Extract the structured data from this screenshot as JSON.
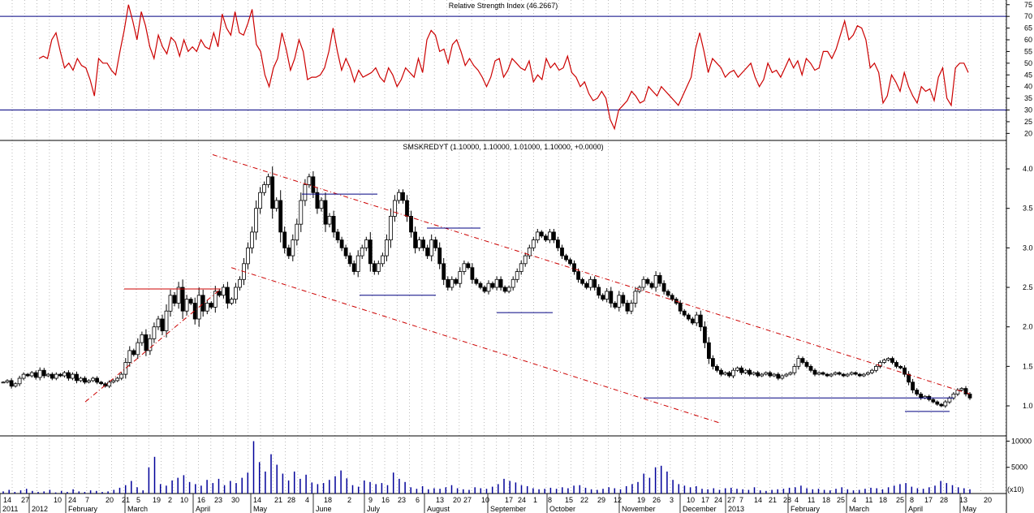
{
  "rsi": {
    "title": "Relative Strength Index (46.2667)",
    "y_ticks": [
      75,
      70,
      65,
      60,
      55,
      50,
      45,
      40,
      35,
      30,
      25,
      20
    ],
    "ylim": [
      17,
      77
    ],
    "levels": [
      70,
      30
    ],
    "color": "#cc0000",
    "level_color": "#000080"
  },
  "price": {
    "title": "SMSKREDYT (1.10000, 1.10000, 1.01000, 1.10000, +0.0000)",
    "y_ticks": [
      "4.0",
      "3.5",
      "3.0",
      "2.5",
      "2.0",
      "1.5",
      "1.0"
    ],
    "ylim": [
      0.62,
      4.36
    ],
    "bar_color": "#000000",
    "trend_color": "#cc0000",
    "support_color": "#000080"
  },
  "volume": {
    "y_ticks": [
      "10000",
      "5000"
    ],
    "ylim": [
      0,
      11000
    ],
    "color": "#000099",
    "unit_label": "(x10)"
  },
  "x_axis": {
    "day_labels": [
      "14",
      "27",
      "10",
      "24",
      "7",
      "20",
      "21",
      "5",
      "19",
      "2",
      "10",
      "16",
      "23",
      "30",
      "14",
      "21",
      "28",
      "4",
      "18",
      "2",
      "9",
      "16",
      "23",
      "6",
      "13",
      "20",
      "27",
      "10",
      "17",
      "24",
      "1",
      "8",
      "15",
      "22",
      "29",
      "12",
      "19",
      "26",
      "3",
      "10",
      "17",
      "24",
      "27",
      "7",
      "14",
      "21",
      "28",
      "4",
      "11",
      "18",
      "25",
      "4",
      "11",
      "18",
      "25",
      "8",
      "17",
      "28",
      "13",
      "20"
    ],
    "month_labels": [
      "2011",
      "2012",
      "February",
      "March",
      "April",
      "May",
      "June",
      "July",
      "August",
      "September",
      "October",
      "November",
      "December",
      "2013",
      "February",
      "March",
      "April",
      "May"
    ]
  },
  "chart_data": [
    {
      "type": "line",
      "title": "Relative Strength Index (46.2667)",
      "ylim": [
        17,
        77
      ],
      "reference_lines": [
        70,
        30
      ],
      "series": [
        {
          "values": [
            52,
            53,
            52,
            60,
            63,
            55,
            48,
            50,
            47,
            52,
            49,
            48,
            43,
            36,
            52,
            50,
            50,
            47,
            45,
            55,
            64,
            75,
            68,
            60,
            72,
            66,
            57,
            52,
            62,
            57,
            54,
            61,
            59,
            53,
            60,
            55,
            57,
            55,
            60,
            57,
            56,
            63,
            57,
            71,
            65,
            62,
            72,
            63,
            62,
            67,
            73,
            58,
            55,
            45,
            40,
            48,
            52,
            63,
            56,
            47,
            52,
            60,
            55,
            43,
            44,
            44,
            45,
            48,
            55,
            65,
            55,
            47,
            52,
            48,
            42,
            47,
            44,
            45,
            46,
            48,
            44,
            42,
            48,
            45,
            40,
            43,
            48,
            46,
            44,
            52,
            46,
            60,
            64,
            62,
            55,
            56,
            50,
            58,
            60,
            55,
            49,
            52,
            49,
            47,
            44,
            40,
            44,
            51,
            52,
            44,
            47,
            52,
            50,
            48,
            47,
            51,
            42,
            45,
            43,
            52,
            48,
            50,
            47,
            48,
            53,
            46,
            44,
            40,
            42,
            37,
            34,
            35,
            38,
            35,
            26,
            22,
            30,
            32,
            34,
            38,
            36,
            33,
            34,
            40,
            38,
            36,
            40,
            38,
            36,
            34,
            32,
            36,
            40,
            44,
            56,
            63,
            55,
            46,
            52,
            50,
            48,
            44,
            46,
            47,
            44,
            46,
            48,
            50,
            44,
            40,
            43,
            50,
            46,
            47,
            44,
            48,
            52,
            48,
            51,
            45,
            52,
            50,
            47,
            48,
            55,
            55,
            52,
            56,
            62,
            68,
            60,
            62,
            66,
            65,
            60,
            48,
            50,
            46,
            33,
            36,
            45,
            42,
            38,
            46,
            40,
            36,
            33,
            40,
            38,
            39,
            34,
            44,
            48,
            35,
            32,
            48,
            50,
            50,
            46
          ],
          "color": "#cc0000"
        }
      ]
    },
    {
      "type": "bar",
      "title": "SMSKREDYT (1.10000, 1.10000, 1.01000, 1.10000, +0.0000)",
      "ylim": [
        0.62,
        4.36
      ],
      "series": [
        {
          "name": "SMSKREDYT",
          "values": [
            1.3,
            1.32,
            1.25,
            1.28,
            1.35,
            1.4,
            1.38,
            1.42,
            1.36,
            1.45,
            1.38,
            1.4,
            1.35,
            1.4,
            1.38,
            1.42,
            1.35,
            1.4,
            1.32,
            1.35,
            1.3,
            1.32,
            1.35,
            1.3,
            1.28,
            1.25,
            1.3,
            1.32,
            1.35,
            1.4,
            1.55,
            1.7,
            1.65,
            1.8,
            1.9,
            1.7,
            1.85,
            2.0,
            2.1,
            1.95,
            2.2,
            2.4,
            2.3,
            2.5,
            2.2,
            2.35,
            2.3,
            2.1,
            2.4,
            2.2,
            2.3,
            2.25,
            2.45,
            2.4,
            2.5,
            2.3,
            2.35,
            2.5,
            2.6,
            2.8,
            3.0,
            3.2,
            3.5,
            3.7,
            3.8,
            3.9,
            3.5,
            3.6,
            3.2,
            3.0,
            2.9,
            3.1,
            3.3,
            3.6,
            3.8,
            3.9,
            3.7,
            3.5,
            3.6,
            3.3,
            3.4,
            3.2,
            3.1,
            3.0,
            2.9,
            2.8,
            2.7,
            2.9,
            3.0,
            3.1,
            2.8,
            2.7,
            2.8,
            2.9,
            3.1,
            3.4,
            3.6,
            3.7,
            3.6,
            3.4,
            3.2,
            3.0,
            3.1,
            3.0,
            2.9,
            3.1,
            3.0,
            2.8,
            2.6,
            2.5,
            2.6,
            2.55,
            2.7,
            2.8,
            2.75,
            2.6,
            2.55,
            2.5,
            2.45,
            2.55,
            2.5,
            2.6,
            2.5,
            2.45,
            2.5,
            2.6,
            2.7,
            2.8,
            2.9,
            3.0,
            3.1,
            3.2,
            3.15,
            3.1,
            3.2,
            3.1,
            3.0,
            2.9,
            2.85,
            2.8,
            2.7,
            2.6,
            2.55,
            2.5,
            2.6,
            2.5,
            2.4,
            2.35,
            2.45,
            2.3,
            2.25,
            2.4,
            2.3,
            2.2,
            2.3,
            2.45,
            2.5,
            2.6,
            2.55,
            2.5,
            2.65,
            2.55,
            2.45,
            2.4,
            2.35,
            2.3,
            2.2,
            2.15,
            2.1,
            2.05,
            2.15,
            2.0,
            1.8,
            1.6,
            1.5,
            1.45,
            1.4,
            1.42,
            1.38,
            1.45,
            1.48,
            1.42,
            1.45,
            1.4,
            1.42,
            1.38,
            1.4,
            1.42,
            1.38,
            1.4,
            1.35,
            1.38,
            1.4,
            1.42,
            1.5,
            1.6,
            1.55,
            1.5,
            1.45,
            1.4,
            1.42,
            1.4,
            1.38,
            1.4,
            1.42,
            1.4,
            1.38,
            1.4,
            1.42,
            1.4,
            1.38,
            1.4,
            1.42,
            1.45,
            1.5,
            1.55,
            1.58,
            1.6,
            1.55,
            1.5,
            1.48,
            1.4,
            1.3,
            1.2,
            1.15,
            1.1,
            1.12,
            1.08,
            1.05,
            1.02,
            1.0,
            1.05,
            1.1,
            1.15,
            1.2,
            1.22,
            1.15,
            1.1
          ],
          "color": "#000000"
        }
      ],
      "annotations": [
        "rising trendline (Jan-Apr 2012)",
        "resistance 2.48 (Mar-Apr 2012)",
        "descending channel upper (Apr 2012 - May 2013)",
        "descending channel lower (Apr 2012 - Dec 2012)",
        "horizontal 3.68 (Jun 2012)",
        "horizontal 2.40 (Jul 2012)",
        "horizontal 3.25 (Aug 2012)",
        "horizontal 2.18 (Sep 2012)",
        "support 1.10 (Nov 2012 - Apr 2013)",
        "horizontal 0.93 (Apr 2013)"
      ]
    },
    {
      "type": "bar",
      "title": "",
      "ylim": [
        0,
        11000
      ],
      "series": [
        {
          "name": "Volume",
          "values": [
            400,
            700,
            300,
            600,
            900,
            500,
            300,
            400,
            700,
            200,
            500,
            300,
            800,
            400,
            300,
            600,
            500,
            300,
            400,
            700,
            1100,
            1600,
            2400,
            1200,
            600,
            5000,
            7000,
            1800,
            1500,
            2500,
            3000,
            3500,
            2200,
            1800,
            1500,
            2600,
            2000,
            2800,
            1600,
            2400,
            2000,
            3000,
            4000,
            10000,
            6000,
            4200,
            7500,
            5500,
            3800,
            2500,
            4200,
            2800,
            3600,
            2100,
            1800,
            2000,
            2600,
            3300,
            4400,
            2900,
            1600,
            1300,
            2500,
            2200,
            1800,
            2000,
            1600,
            4000,
            2800,
            2200,
            1200,
            900,
            1400,
            800,
            1000,
            900,
            1200,
            1600,
            1000,
            800,
            700,
            1200,
            1000,
            900,
            1300,
            1800,
            2800,
            2400,
            2100,
            1600,
            1400,
            1000,
            800,
            900,
            1100,
            900,
            1200,
            1000,
            1500,
            1600,
            1100,
            800,
            700,
            900,
            1200,
            1000,
            800,
            1400,
            1800,
            2200,
            3800,
            3000,
            5000,
            5300,
            4200,
            2600,
            1800,
            1500,
            1200,
            1400,
            900,
            800,
            1000,
            700,
            1000,
            1100,
            900,
            800,
            700,
            1200,
            600,
            500,
            700,
            800,
            900,
            1100,
            1200,
            1500,
            1000,
            800,
            900,
            700,
            600,
            900,
            1200,
            800,
            600,
            700,
            900,
            1100,
            1000,
            800,
            1200,
            1500,
            1800,
            2000,
            1300,
            1000,
            900,
            1200,
            1500,
            2400,
            2000,
            1600,
            1200,
            1000,
            800
          ],
          "color": "#000099"
        }
      ]
    }
  ]
}
